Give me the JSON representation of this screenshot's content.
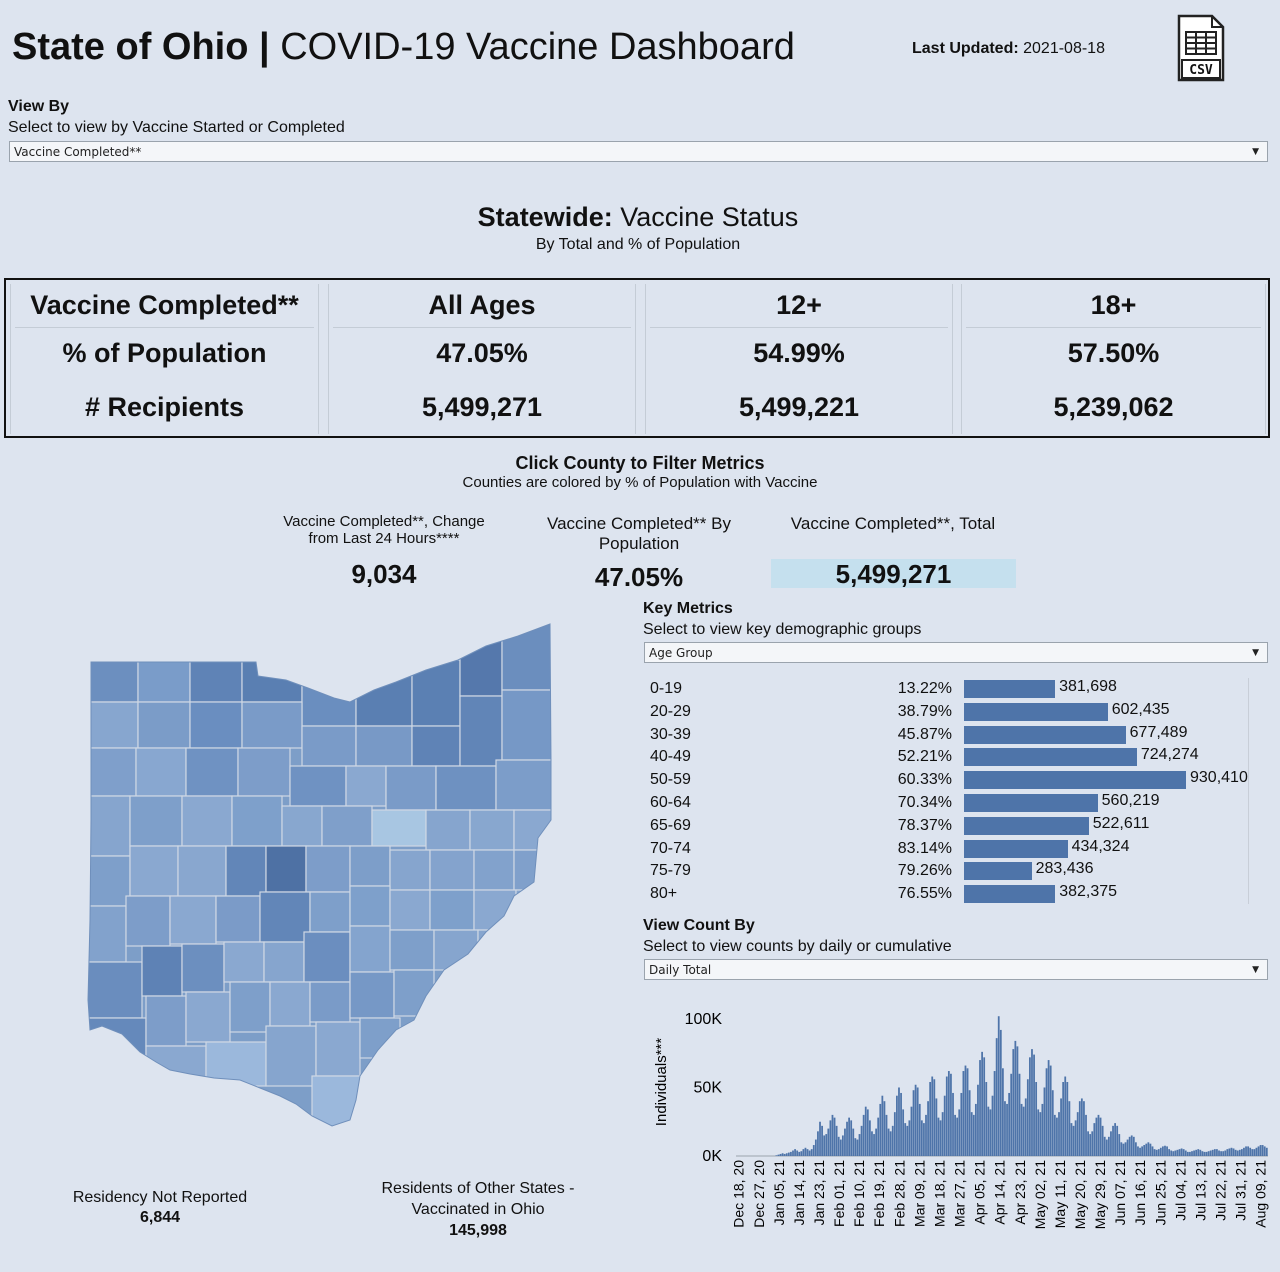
{
  "header": {
    "title_bold": "State of Ohio",
    "title_sep": " | ",
    "title_rest": "COVID-19 Vaccine Dashboard",
    "updated_label": "Last Updated:",
    "updated_value": "2021-08-18",
    "csv_label": "CSV"
  },
  "view_by": {
    "title": "View By",
    "subtitle": "Select to view by Vaccine Started or Completed",
    "selected": "Vaccine Completed**"
  },
  "statewide": {
    "heading_bold": "Statewide:",
    "heading_rest": " Vaccine Status",
    "subheading": "By Total and % of Population",
    "columns": [
      {
        "header": "Vaccine Completed**",
        "row1": "% of Population",
        "row2": "# Recipients"
      },
      {
        "header": "All Ages",
        "row1": "47.05%",
        "row2": "5,499,271"
      },
      {
        "header": "12+",
        "row1": "54.99%",
        "row2": "5,499,221"
      },
      {
        "header": "18+",
        "row1": "57.50%",
        "row2": "5,239,062"
      }
    ]
  },
  "filter": {
    "title": "Click County to Filter Metrics",
    "subtitle": "Counties are colored by % of Population with Vaccine"
  },
  "kpis": {
    "change_label": "Vaccine Completed**, Change from Last 24 Hours****",
    "change_value": "9,034",
    "pop_label": "Vaccine Completed** By Population",
    "pop_value": "47.05%",
    "total_label": "Vaccine Completed**, Total",
    "total_value": "5,499,271"
  },
  "key_metrics": {
    "title": "Key Metrics",
    "subtitle": "Select to view key demographic groups",
    "selected": "Age Group",
    "rows": [
      {
        "group": "0-19",
        "pct": "13.22%",
        "count": 381698,
        "count_label": "381,698"
      },
      {
        "group": "20-29",
        "pct": "38.79%",
        "count": 602435,
        "count_label": "602,435"
      },
      {
        "group": "30-39",
        "pct": "45.87%",
        "count": 677489,
        "count_label": "677,489"
      },
      {
        "group": "40-49",
        "pct": "52.21%",
        "count": 724274,
        "count_label": "724,274"
      },
      {
        "group": "50-59",
        "pct": "60.33%",
        "count": 930410,
        "count_label": "930,410"
      },
      {
        "group": "60-64",
        "pct": "70.34%",
        "count": 560219,
        "count_label": "560,219"
      },
      {
        "group": "65-69",
        "pct": "78.37%",
        "count": 522611,
        "count_label": "522,611"
      },
      {
        "group": "70-74",
        "pct": "83.14%",
        "count": 434324,
        "count_label": "434,324"
      },
      {
        "group": "75-79",
        "pct": "79.26%",
        "count": 283436,
        "count_label": "283,436"
      },
      {
        "group": "80+",
        "pct": "76.55%",
        "count": 382375,
        "count_label": "382,375"
      }
    ]
  },
  "view_count": {
    "title": "View Count By",
    "subtitle": "Select to view counts by daily or cumulative",
    "selected": "Daily Total"
  },
  "footer": {
    "not_reported_label": "Residency Not Reported",
    "not_reported_value": "6,844",
    "other_states_label": "Residents of Other States - Vaccinated in Ohio",
    "other_states_value": "145,998"
  },
  "chart_data": {
    "type": "bar",
    "title": "",
    "ylabel": "Individuals***",
    "ylim": [
      0,
      100000
    ],
    "yticks": [
      "100K",
      "50K",
      "0K"
    ],
    "ytick_values": [
      100000,
      50000,
      0
    ],
    "xtick_labels": [
      "Dec 18, 20",
      "Dec 27, 20",
      "Jan 05, 21",
      "Jan 14, 21",
      "Jan 23, 21",
      "Feb 01, 21",
      "Feb 10, 21",
      "Feb 19, 21",
      "Feb 28, 21",
      "Mar 09, 21",
      "Mar 18, 21",
      "Mar 27, 21",
      "Apr 05, 21",
      "Apr 14, 21",
      "Apr 23, 21",
      "May 02, 21",
      "May 11, 21",
      "May 20, 21",
      "May 29, 21",
      "Jun 07, 21",
      "Jun 16, 21",
      "Jun 25, 21",
      "Jul 04, 21",
      "Jul 13, 21",
      "Jul 22, 21",
      "Jul 31, 21",
      "Aug 09, 21"
    ],
    "series": [
      {
        "name": "Daily Total",
        "values": [
          0,
          0,
          0,
          0,
          0,
          0,
          0,
          0,
          0,
          0,
          0,
          0,
          0,
          0,
          0,
          0,
          0,
          0,
          0,
          500,
          1000,
          1500,
          2000,
          1500,
          2000,
          2500,
          3000,
          4000,
          5000,
          4000,
          3000,
          3500,
          5000,
          6000,
          5000,
          4000,
          5000,
          8000,
          12000,
          18000,
          25000,
          22000,
          15000,
          16000,
          20000,
          26000,
          30000,
          28000,
          22000,
          14000,
          12000,
          15000,
          20000,
          25000,
          28000,
          26000,
          20000,
          13000,
          12000,
          16000,
          22000,
          30000,
          36000,
          34000,
          26000,
          18000,
          16000,
          20000,
          28000,
          38000,
          44000,
          40000,
          30000,
          20000,
          18000,
          22000,
          32000,
          44000,
          50000,
          46000,
          34000,
          24000,
          22000,
          26000,
          36000,
          48000,
          52000,
          50000,
          38000,
          26000,
          24000,
          30000,
          40000,
          54000,
          58000,
          56000,
          42000,
          28000,
          26000,
          32000,
          44000,
          58000,
          62000,
          60000,
          46000,
          30000,
          28000,
          34000,
          46000,
          62000,
          66000,
          64000,
          48000,
          32000,
          30000,
          38000,
          52000,
          70000,
          76000,
          72000,
          54000,
          36000,
          34000,
          44000,
          62000,
          86000,
          102000,
          92000,
          64000,
          40000,
          38000,
          46000,
          60000,
          78000,
          84000,
          80000,
          60000,
          38000,
          36000,
          42000,
          56000,
          72000,
          78000,
          74000,
          54000,
          34000,
          32000,
          38000,
          50000,
          64000,
          70000,
          66000,
          48000,
          30000,
          28000,
          32000,
          42000,
          54000,
          58000,
          54000,
          40000,
          24000,
          22000,
          26000,
          32000,
          40000,
          42000,
          40000,
          30000,
          18000,
          16000,
          18000,
          24000,
          28000,
          30000,
          28000,
          22000,
          14000,
          12000,
          14000,
          18000,
          22000,
          24000,
          22000,
          16000,
          10000,
          9000,
          10000,
          12000,
          14000,
          15000,
          14000,
          10000,
          7000,
          6000,
          7000,
          8000,
          9000,
          10000,
          9000,
          7000,
          5000,
          4500,
          5000,
          6000,
          7000,
          7500,
          7000,
          5000,
          4000,
          3500,
          4000,
          4500,
          5000,
          5500,
          5000,
          4000,
          3000,
          3000,
          3500,
          4000,
          4500,
          5000,
          4500,
          3500,
          3000,
          3000,
          3500,
          4000,
          4500,
          5000,
          5000,
          4000,
          3500,
          3500,
          4000,
          5000,
          5500,
          6000,
          5500,
          4500,
          4000,
          4500,
          5000,
          6000,
          7000,
          7000,
          6000,
          5000,
          5000,
          6000,
          7000,
          8000,
          8000,
          7000,
          6000
        ]
      }
    ]
  },
  "colors": {
    "background": "#dde4ef",
    "bar": "#4e74a9",
    "highlight": "#c5e0ee"
  }
}
